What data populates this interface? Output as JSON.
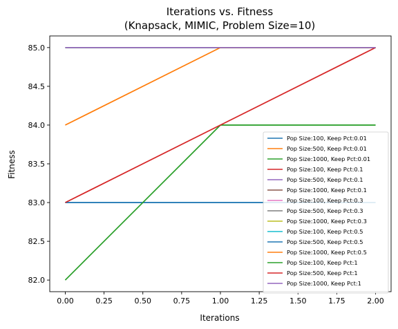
{
  "chart_data": {
    "type": "line",
    "title": [
      "Iterations vs. Fitness",
      "(Knapsack, MIMIC, Problem Size=10)"
    ],
    "xlabel": "Iterations",
    "ylabel": "Fitness",
    "xlim": [
      -0.1,
      2.1
    ],
    "ylim": [
      81.85,
      85.15
    ],
    "xticks": [
      0,
      0.25,
      0.5,
      0.75,
      1,
      1.25,
      1.5,
      1.75,
      2
    ],
    "xtick_labels": [
      "0.00",
      "0.25",
      "0.50",
      "0.75",
      "1.00",
      "1.25",
      "1.50",
      "1.75",
      "2.00"
    ],
    "yticks": [
      82,
      82.5,
      83,
      83.5,
      84,
      84.5,
      85
    ],
    "ytick_labels": [
      "82.0",
      "82.5",
      "83.0",
      "83.5",
      "84.0",
      "84.5",
      "85.0"
    ],
    "grid": false,
    "legend_position": "lower-right",
    "x": [
      0,
      1,
      2
    ],
    "series": [
      {
        "name": "Pop Size:100, Keep Pct:0.01",
        "color": "#1f77b4",
        "values": [
          83,
          83,
          83
        ]
      },
      {
        "name": "Pop Size:500, Keep Pct:0.01",
        "color": "#ff7f0e",
        "values": [
          84,
          85,
          85
        ]
      },
      {
        "name": "Pop Size:1000, Keep Pct:0.01",
        "color": "#2ca02c",
        "values": [
          82,
          84,
          84
        ]
      },
      {
        "name": "Pop Size:100, Keep Pct:0.1",
        "color": "#d62728",
        "values": [
          83,
          84,
          85
        ]
      },
      {
        "name": "Pop Size:500, Keep Pct:0.1",
        "color": "#9467bd",
        "values": [
          85,
          85,
          85
        ]
      },
      {
        "name": "Pop Size:1000, Keep Pct:0.1",
        "color": "#8c564b",
        "values": [
          85,
          85,
          85
        ]
      },
      {
        "name": "Pop Size:100, Keep Pct:0.3",
        "color": "#e377c2",
        "values": [
          85,
          85,
          85
        ]
      },
      {
        "name": "Pop Size:500, Keep Pct:0.3",
        "color": "#7f7f7f",
        "values": [
          85,
          85,
          85
        ]
      },
      {
        "name": "Pop Size:1000, Keep Pct:0.3",
        "color": "#bcbd22",
        "values": [
          85,
          85,
          85
        ]
      },
      {
        "name": "Pop Size:100, Keep Pct:0.5",
        "color": "#17becf",
        "values": [
          85,
          85,
          85
        ]
      },
      {
        "name": "Pop Size:500, Keep Pct:0.5",
        "color": "#1f77b4",
        "values": [
          83,
          83,
          83
        ]
      },
      {
        "name": "Pop Size:1000, Keep Pct:0.5",
        "color": "#ff7f0e",
        "values": [
          84,
          85,
          85
        ]
      },
      {
        "name": "Pop Size:100, Keep Pct:1",
        "color": "#2ca02c",
        "values": [
          82,
          84,
          84
        ]
      },
      {
        "name": "Pop Size:500, Keep Pct:1",
        "color": "#d62728",
        "values": [
          83,
          84,
          85
        ]
      },
      {
        "name": "Pop Size:1000, Keep Pct:1",
        "color": "#9467bd",
        "values": [
          85,
          85,
          85
        ]
      }
    ]
  }
}
